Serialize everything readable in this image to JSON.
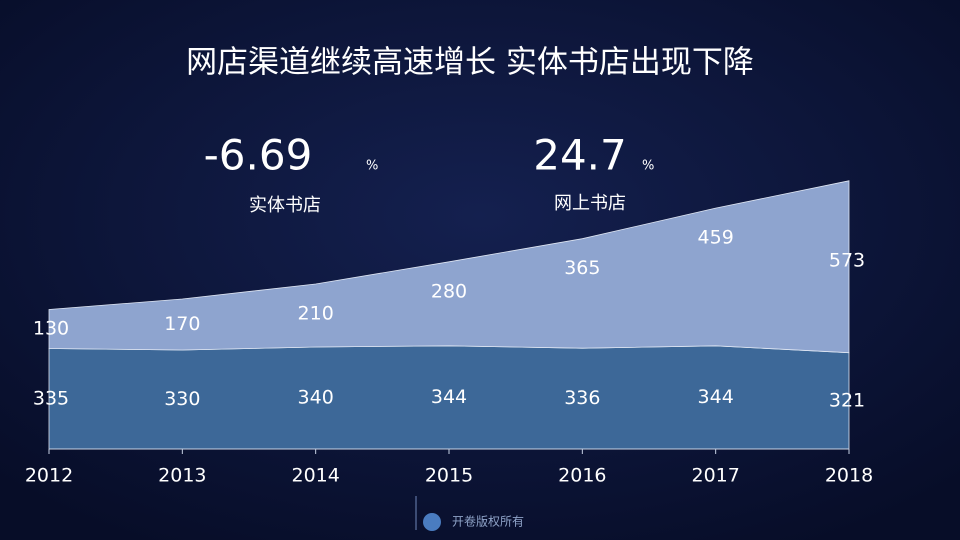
{
  "chart_data": {
    "type": "stacked-area",
    "title": "网店渠道继续高速增长  实体书店出现下降",
    "categories": [
      "2012",
      "2013",
      "2014",
      "2015",
      "2016",
      "2017",
      "2018"
    ],
    "series": [
      {
        "name": "实体书店",
        "color": "#3d6898",
        "values": [
          335,
          330,
          340,
          344,
          336,
          344,
          321
        ]
      },
      {
        "name": "网上书店",
        "color": "#8ea4cf",
        "values": [
          130,
          170,
          210,
          280,
          365,
          459,
          573
        ]
      }
    ],
    "annotations": [
      {
        "value": -6.69,
        "unit": "%"
      },
      {
        "value": 24.7,
        "unit": "%"
      }
    ],
    "ylim": [
      0,
      900
    ],
    "footer": "开卷版权所有"
  }
}
